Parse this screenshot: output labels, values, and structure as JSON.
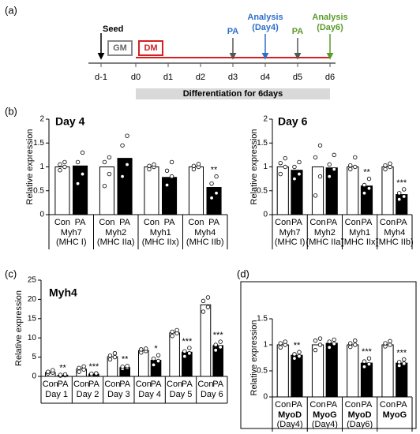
{
  "timeline": {
    "label": "(a)",
    "days": [
      "d-1",
      "d0",
      "d1",
      "d2",
      "d3",
      "d4",
      "d5",
      "d6"
    ],
    "seed": "Seed",
    "gm": "GM",
    "dm": "DM",
    "pa1": "PA",
    "analysis1": [
      "Analysis",
      "(Day4)"
    ],
    "pa2": "PA",
    "analysis2": [
      "Analysis",
      "(Day6)"
    ],
    "period": "Differentiation for 6days"
  },
  "chart_data": [
    {
      "type": "bar",
      "panel": "(b)",
      "title": "Day 4",
      "ylabel": "Relative expression",
      "categories": [
        [
          "Myh7",
          "(MHC I)"
        ],
        [
          "Myh2",
          "(MHC IIa)"
        ],
        [
          "Myh1",
          "(MHC IIx)"
        ],
        [
          "Myh4",
          "(MHC IIb)"
        ]
      ],
      "ylim": [
        0,
        2
      ],
      "yticks": [
        0,
        0.5,
        1,
        1.5,
        2
      ],
      "series": [
        {
          "name": "Con",
          "color": "#ffffff",
          "values": [
            1,
            1,
            1,
            1
          ],
          "significance": [
            null,
            null,
            null,
            null
          ],
          "points": [
            [
              0.93,
              1.0,
              1.05,
              1.1
            ],
            [
              0.6,
              0.85,
              1.1,
              1.2
            ],
            [
              0.95,
              1.0,
              1.02,
              1.05
            ],
            [
              0.95,
              1.0,
              1.02,
              1.06
            ]
          ]
        },
        {
          "name": "PA",
          "color": "#000000",
          "values": [
            1.02,
            1.18,
            0.78,
            0.57
          ],
          "significance": [
            null,
            null,
            null,
            "**"
          ],
          "points": [
            [
              0.65,
              0.85,
              1.1,
              1.3
            ],
            [
              0.8,
              1.05,
              1.45,
              1.65
            ],
            [
              0.62,
              0.8,
              0.92,
              1.1
            ],
            [
              0.35,
              0.45,
              0.65,
              0.8
            ]
          ]
        }
      ]
    },
    {
      "type": "bar",
      "title": "Day 6",
      "ylabel": "Relative expression",
      "categories": [
        [
          "Myh7",
          "(MHC I)"
        ],
        [
          "Myh2",
          "(MHC IIa)"
        ],
        [
          "Myh1",
          "(MHC IIx)"
        ],
        [
          "Myh4",
          "(MHC IIb)"
        ]
      ],
      "ylim": [
        0,
        2
      ],
      "yticks": [
        0,
        0.5,
        1,
        1.5,
        2
      ],
      "series": [
        {
          "name": "Con",
          "color": "#ffffff",
          "values": [
            1,
            1,
            1,
            1
          ],
          "significance": [
            null,
            null,
            null,
            null
          ],
          "points": [
            [
              0.85,
              1.0,
              1.08,
              1.18
            ],
            [
              0.4,
              0.8,
              1.2,
              1.45
            ],
            [
              0.95,
              1.0,
              1.03,
              1.2
            ],
            [
              0.95,
              1.0,
              1.03,
              1.07
            ]
          ]
        },
        {
          "name": "PA",
          "color": "#000000",
          "values": [
            0.93,
            0.98,
            0.6,
            0.42
          ],
          "significance": [
            null,
            null,
            "**",
            "***"
          ],
          "points": [
            [
              0.75,
              0.85,
              1.0,
              1.1
            ],
            [
              0.8,
              0.95,
              1.05,
              1.25
            ],
            [
              0.45,
              0.55,
              0.62,
              0.75
            ],
            [
              0.32,
              0.38,
              0.45,
              0.53
            ]
          ]
        }
      ]
    },
    {
      "type": "bar",
      "panel": "(c)",
      "title": "Myh4",
      "ylabel": "Relative expression",
      "categories": [
        [
          "Day 1"
        ],
        [
          "Day 2"
        ],
        [
          "Day 3"
        ],
        [
          "Day 4"
        ],
        [
          "Day 5"
        ],
        [
          "Day 6"
        ]
      ],
      "ylim": [
        0,
        25
      ],
      "yticks": [
        0,
        5,
        10,
        15,
        20,
        25
      ],
      "series": [
        {
          "name": "Con",
          "color": "#ffffff",
          "values": [
            1,
            1.9,
            5.1,
            6.7,
            11.3,
            18.6
          ],
          "significance": [
            null,
            null,
            null,
            null,
            null,
            null
          ],
          "points": [
            [
              0.8,
              1.0,
              1.2,
              1.6
            ],
            [
              1.2,
              1.8,
              2.2,
              2.6
            ],
            [
              4.4,
              5.0,
              5.4,
              6.0
            ],
            [
              6.2,
              6.6,
              7.0,
              7.2
            ],
            [
              10.5,
              11.2,
              11.6,
              12.0
            ],
            [
              16.8,
              18.0,
              19.6,
              20.5
            ]
          ]
        },
        {
          "name": "PA",
          "color": "#000000",
          "values": [
            0.3,
            0.6,
            2.3,
            4.2,
            6.3,
            8.0
          ],
          "significance": [
            "**",
            "***",
            "**",
            "*",
            "***",
            "***"
          ],
          "points": [
            [
              0.2,
              0.3,
              0.4,
              0.5
            ],
            [
              0.4,
              0.6,
              0.7,
              0.8
            ],
            [
              2.0,
              2.3,
              2.5,
              2.7
            ],
            [
              3.0,
              4.0,
              4.6,
              5.5
            ],
            [
              5.2,
              6.0,
              6.5,
              7.4
            ],
            [
              6.8,
              7.6,
              8.2,
              9.0
            ]
          ]
        }
      ]
    },
    {
      "type": "bar",
      "panel": "(d)",
      "ylabel": "Relative expression",
      "categories": [
        [
          "MyoD",
          "(Day4)"
        ],
        [
          "MyoG",
          "(Day4)"
        ],
        [
          "MyoD",
          "(Day6)"
        ],
        [
          "MyoG"
        ]
      ],
      "ylim": [
        0,
        1.5
      ],
      "yticks": [
        0,
        0.5,
        1,
        1.5
      ],
      "series": [
        {
          "name": "Con",
          "color": "#ffffff",
          "values": [
            1,
            1,
            1,
            1
          ],
          "significance": [
            null,
            null,
            null,
            null
          ],
          "points": [
            [
              0.95,
              1.0,
              1.03,
              1.06
            ],
            [
              0.9,
              1.0,
              1.08,
              1.12
            ],
            [
              0.96,
              1.0,
              1.03,
              1.08
            ],
            [
              0.97,
              1.0,
              1.03,
              1.07
            ]
          ]
        },
        {
          "name": "PA",
          "color": "#000000",
          "values": [
            0.8,
            1.03,
            0.65,
            0.65
          ],
          "significance": [
            "**",
            null,
            "***",
            "***"
          ],
          "points": [
            [
              0.74,
              0.78,
              0.82,
              0.86
            ],
            [
              0.95,
              1.02,
              1.06,
              1.1
            ],
            [
              0.58,
              0.63,
              0.68,
              0.74
            ],
            [
              0.6,
              0.64,
              0.67,
              0.72
            ]
          ]
        }
      ]
    }
  ]
}
